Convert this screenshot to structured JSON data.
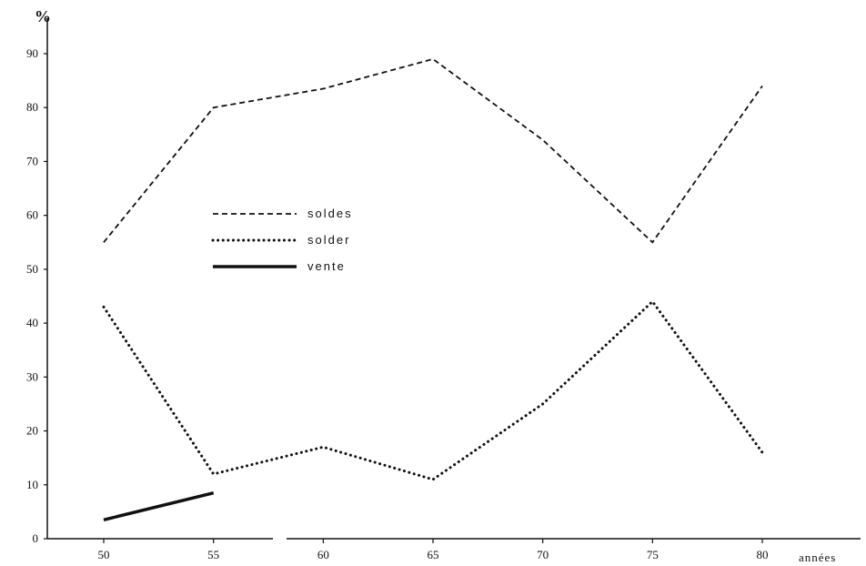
{
  "chart_data": {
    "type": "line",
    "title": "",
    "ylabel": "%",
    "xlabel": "années",
    "x": [
      50,
      55,
      60,
      65,
      70,
      75,
      80
    ],
    "ylim": [
      0,
      95
    ],
    "xlim": [
      50,
      80
    ],
    "yticks": [
      0,
      10,
      20,
      30,
      40,
      50,
      60,
      70,
      80,
      90
    ],
    "grid": false,
    "legend_position": "center-left",
    "series": [
      {
        "name": "soldes",
        "style": "dashed",
        "x": [
          50,
          55,
          60,
          65,
          70,
          75,
          80
        ],
        "values": [
          55,
          80,
          83.5,
          89,
          74,
          55,
          84
        ]
      },
      {
        "name": "solder",
        "style": "dotted",
        "x": [
          50,
          55,
          60,
          65,
          70,
          75,
          80
        ],
        "values": [
          43,
          12,
          17,
          11,
          25,
          44,
          16
        ]
      },
      {
        "name": "vente",
        "style": "solid",
        "x": [
          50,
          55
        ],
        "values": [
          3.5,
          8.5
        ]
      }
    ]
  }
}
